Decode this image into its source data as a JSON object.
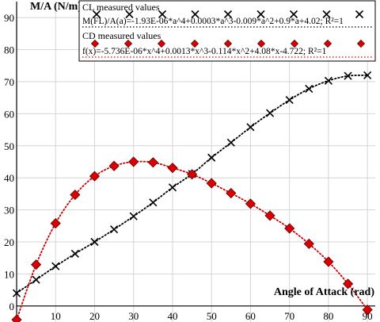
{
  "chart_data": {
    "type": "scatter",
    "ylabel": "M/A (N/m)",
    "xlabel": "Angle of Attack (rad)",
    "xlim": [
      0,
      92
    ],
    "ylim": [
      -5,
      95
    ],
    "x_ticks": [
      10,
      20,
      30,
      40,
      50,
      60,
      70,
      80,
      90
    ],
    "y_ticks": [
      0,
      10,
      20,
      30,
      40,
      50,
      60,
      70,
      80,
      90
    ],
    "grid": true,
    "legend_position": "top-right",
    "series": [
      {
        "name": "CL measured values",
        "marker": "x",
        "color": "#000000",
        "x": [
          0,
          5,
          10,
          15,
          20,
          25,
          30,
          35,
          40,
          45,
          50,
          55,
          60,
          65,
          70,
          75,
          80,
          85,
          90
        ],
        "values": [
          4,
          8.2,
          12.4,
          16.3,
          20,
          23.9,
          28,
          32.3,
          37,
          41.2,
          46.3,
          51,
          55.8,
          60.2,
          64.3,
          67.8,
          70.3,
          71.8,
          72
        ]
      },
      {
        "name": "CD measured values",
        "marker": "diamond",
        "color": "#cc0000",
        "x": [
          0,
          5,
          10,
          15,
          20,
          25,
          30,
          35,
          40,
          45,
          50,
          55,
          60,
          65,
          70,
          75,
          80,
          85,
          90
        ],
        "values": [
          -4.3,
          12.9,
          25.8,
          34.7,
          40.5,
          43.7,
          45,
          44.8,
          43.1,
          41.1,
          38.3,
          35.2,
          31.9,
          28.2,
          24.2,
          19.4,
          13.8,
          6.9,
          -1.2
        ]
      }
    ],
    "trendlines": [
      {
        "label": "M(FL)/A(a)=-1.93E-06*a^4+0.0003*a^3-0.009*a^2+0.9*a+4.02; R²=1",
        "color": "#000000"
      },
      {
        "label": "f(x)=-5.736E-06*x^4+0.0013*x^3-0.114*x^2+4.08*x-4.722; R²=1",
        "color": "#cc0000"
      }
    ]
  }
}
